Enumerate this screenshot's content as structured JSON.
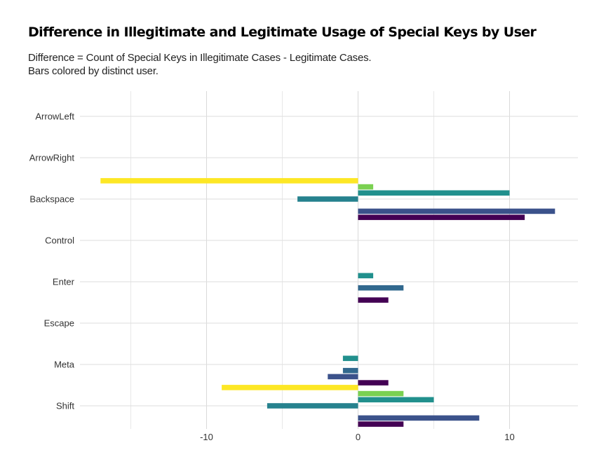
{
  "chart_data": {
    "type": "bar",
    "orientation": "horizontal",
    "title": "Difference in Illegitimate and Legitimate Usage of Special Keys by User",
    "subtitle": [
      "Difference = Count of Special Keys in Illegitimate Cases - Legitimate Cases.",
      "Bars colored by distinct user."
    ],
    "xlabel": "",
    "ylabel": "",
    "categories": [
      "ArrowLeft",
      "ArrowRight",
      "Backspace",
      "Control",
      "Enter",
      "Escape",
      "Meta",
      "Shift"
    ],
    "xlim": [
      -18.5,
      14.5
    ],
    "x_ticks": [
      -10,
      0,
      10
    ],
    "x_tick_labels": [
      "-10",
      "0",
      "10"
    ],
    "grid": true,
    "legend": "none",
    "series": [
      {
        "color": "#440154",
        "values": [
          null,
          null,
          11,
          null,
          2,
          null,
          2,
          3
        ]
      },
      {
        "color": "#3b528b",
        "values": [
          null,
          null,
          13,
          null,
          null,
          null,
          -2,
          8
        ]
      },
      {
        "color": "#31688e",
        "values": [
          null,
          null,
          null,
          null,
          3,
          null,
          -1,
          null
        ]
      },
      {
        "color": "#26828e",
        "values": [
          null,
          null,
          -4,
          null,
          null,
          null,
          null,
          -6
        ]
      },
      {
        "color": "#21908d",
        "values": [
          null,
          null,
          10,
          null,
          1,
          null,
          -1,
          5
        ]
      },
      {
        "color": "#7ad151",
        "values": [
          null,
          null,
          1,
          null,
          null,
          null,
          null,
          3
        ]
      },
      {
        "color": "#fde725",
        "values": [
          null,
          null,
          -17,
          null,
          null,
          null,
          null,
          -9
        ]
      }
    ]
  }
}
